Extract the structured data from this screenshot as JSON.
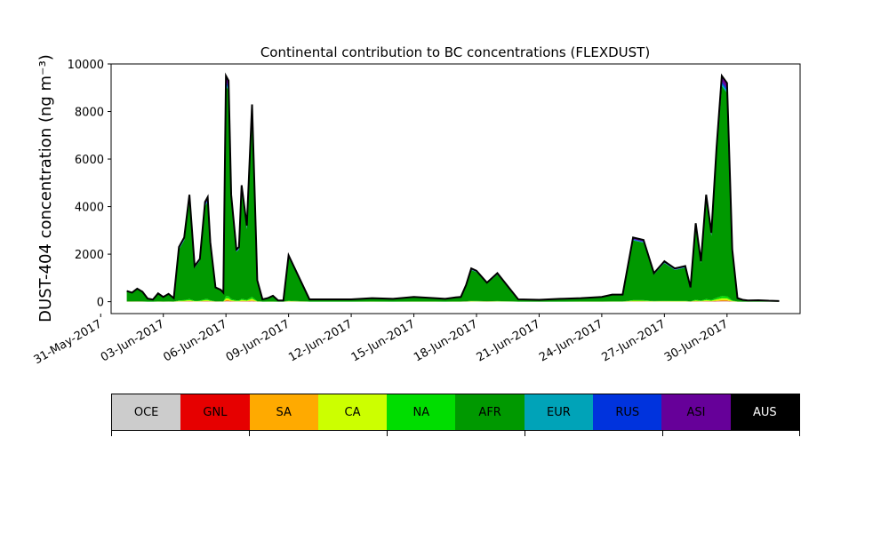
{
  "chart_data": {
    "type": "area",
    "title": "Continental contribution to BC concentrations (FLEXDUST)",
    "ylabel": "DUST-404 concentration (ng m⁻³)",
    "xlabel": "",
    "ylim": [
      -500,
      10000
    ],
    "xlim": [
      "2017-05-31T12:00",
      "2017-07-03T12:00"
    ],
    "yticks": [
      0,
      2000,
      4000,
      6000,
      8000,
      10000
    ],
    "xticks": [
      "2017-05-31",
      "2017-06-03",
      "2017-06-06",
      "2017-06-09",
      "2017-06-12",
      "2017-06-15",
      "2017-06-18",
      "2017-06-21",
      "2017-06-24",
      "2017-06-27",
      "2017-06-30"
    ],
    "xticklabels": [
      "31-May-2017",
      "03-Jun-2017",
      "06-Jun-2017",
      "09-Jun-2017",
      "12-Jun-2017",
      "15-Jun-2017",
      "18-Jun-2017",
      "21-Jun-2017",
      "24-Jun-2017",
      "27-Jun-2017",
      "30-Jun-2017"
    ],
    "grid": false,
    "stacked": true,
    "x": [
      "2017-06-01T06:00",
      "2017-06-01T12:00",
      "2017-06-01T18:00",
      "2017-06-02T00:00",
      "2017-06-02T06:00",
      "2017-06-02T12:00",
      "2017-06-02T18:00",
      "2017-06-03T00:00",
      "2017-06-03T06:00",
      "2017-06-03T12:00",
      "2017-06-03T18:00",
      "2017-06-04T00:00",
      "2017-06-04T06:00",
      "2017-06-04T12:00",
      "2017-06-04T18:00",
      "2017-06-05T00:00",
      "2017-06-05T03:00",
      "2017-06-05T06:00",
      "2017-06-05T12:00",
      "2017-06-05T18:00",
      "2017-06-05T21:00",
      "2017-06-06T00:00",
      "2017-06-06T03:00",
      "2017-06-06T06:00",
      "2017-06-06T12:00",
      "2017-06-06T15:00",
      "2017-06-06T18:00",
      "2017-06-07T00:00",
      "2017-06-07T06:00",
      "2017-06-07T12:00",
      "2017-06-07T18:00",
      "2017-06-08T00:00",
      "2017-06-08T06:00",
      "2017-06-08T12:00",
      "2017-06-08T18:00",
      "2017-06-09T00:00",
      "2017-06-10T00:00",
      "2017-06-11T00:00",
      "2017-06-12T00:00",
      "2017-06-13T00:00",
      "2017-06-14T00:00",
      "2017-06-15T00:00",
      "2017-06-16T00:00",
      "2017-06-16T12:00",
      "2017-06-17T00:00",
      "2017-06-17T06:00",
      "2017-06-17T12:00",
      "2017-06-17T18:00",
      "2017-06-18T00:00",
      "2017-06-18T12:00",
      "2017-06-19T00:00",
      "2017-06-20T00:00",
      "2017-06-21T00:00",
      "2017-06-22T00:00",
      "2017-06-23T00:00",
      "2017-06-24T00:00",
      "2017-06-24T12:00",
      "2017-06-25T00:00",
      "2017-06-25T12:00",
      "2017-06-26T00:00",
      "2017-06-26T12:00",
      "2017-06-27T00:00",
      "2017-06-27T12:00",
      "2017-06-28T00:00",
      "2017-06-28T06:00",
      "2017-06-28T12:00",
      "2017-06-28T18:00",
      "2017-06-29T00:00",
      "2017-06-29T06:00",
      "2017-06-29T12:00",
      "2017-06-29T18:00",
      "2017-06-30T00:00",
      "2017-06-30T06:00",
      "2017-06-30T12:00",
      "2017-06-30T18:00",
      "2017-07-01T00:00",
      "2017-07-01T12:00",
      "2017-07-02T00:00",
      "2017-07-02T12:00"
    ],
    "total": [
      450,
      380,
      550,
      420,
      130,
      90,
      350,
      200,
      330,
      150,
      2300,
      2700,
      4500,
      1500,
      1800,
      4200,
      4400,
      2500,
      600,
      500,
      380,
      9500,
      9300,
      4500,
      2200,
      2300,
      4900,
      3200,
      8300,
      900,
      100,
      150,
      250,
      50,
      50,
      1950,
      100,
      100,
      100,
      150,
      120,
      200,
      150,
      120,
      180,
      200,
      700,
      1400,
      1300,
      800,
      1200,
      100,
      80,
      120,
      150,
      200,
      300,
      300,
      2700,
      2600,
      1200,
      1700,
      1400,
      1500,
      600,
      3300,
      1700,
      4500,
      2900,
      6500,
      9500,
      9200,
      2200,
      150,
      80,
      50,
      60,
      40,
      30
    ],
    "series": [
      {
        "name": "OCE",
        "fraction": 0.002,
        "color": "#cccccc"
      },
      {
        "name": "GNL",
        "fraction": 0.002,
        "color": "#e60000"
      },
      {
        "name": "SA",
        "fraction": 0.003,
        "color": "#ffaa00"
      },
      {
        "name": "CA",
        "fraction": 0.008,
        "color": "#ccff00"
      },
      {
        "name": "NA",
        "fraction": 0.01,
        "color": "#00dd00"
      },
      {
        "name": "AFR",
        "fraction": 0.93,
        "color": "#009900"
      },
      {
        "name": "EUR",
        "fraction": 0.01,
        "color": "#00a3b8"
      },
      {
        "name": "RUS",
        "fraction": 0.01,
        "color": "#0033dd"
      },
      {
        "name": "ASI",
        "fraction": 0.025,
        "color": "#660099"
      },
      {
        "name": "AUS",
        "fraction": 0.0,
        "color": "#000000"
      }
    ],
    "outline_color": "#000000"
  },
  "colorbar": {
    "labels": [
      "OCE",
      "GNL",
      "SA",
      "CA",
      "NA",
      "AFR",
      "EUR",
      "RUS",
      "ASI",
      "AUS"
    ],
    "colors": [
      "#cccccc",
      "#e60000",
      "#ffaa00",
      "#ccff00",
      "#00dd00",
      "#009900",
      "#00a3b8",
      "#0033dd",
      "#660099",
      "#000000"
    ],
    "text_colors": [
      "#000000",
      "#000000",
      "#000000",
      "#000000",
      "#000000",
      "#000000",
      "#000000",
      "#000000",
      "#000000",
      "#ffffff"
    ]
  }
}
